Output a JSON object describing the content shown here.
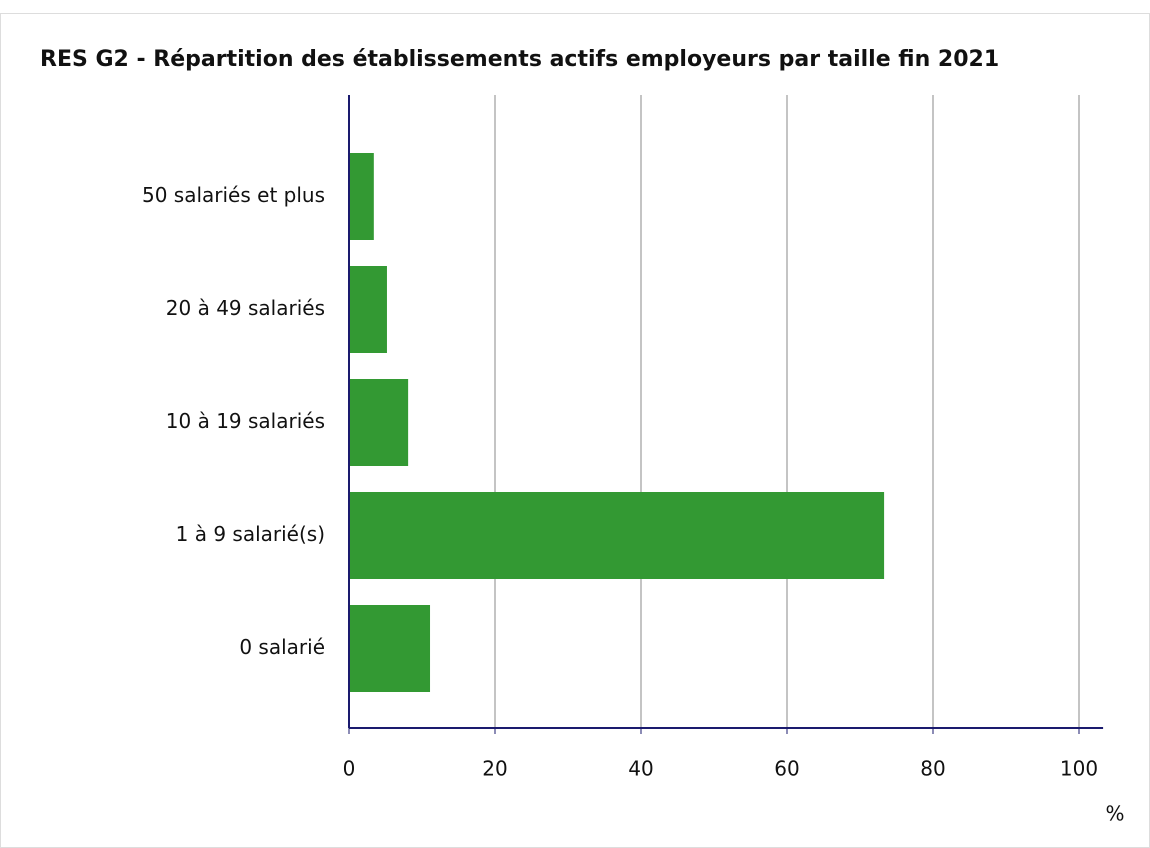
{
  "chart_data": {
    "type": "hbar",
    "title": "RES G2 - Répartition des établissements actifs employeurs par taille fin 2021",
    "categories": [
      "50 salariés et plus",
      "20 à 49 salariés",
      "10 à 19 salariés",
      "1 à 9 salarié(s)",
      "0 salarié"
    ],
    "values": [
      3.4,
      5.2,
      8.1,
      73.3,
      11.1
    ],
    "color": "#339933",
    "xlim": [
      0,
      103.3
    ],
    "xticks": [
      0,
      20,
      40,
      60,
      80,
      100
    ],
    "xlabel": "%",
    "grid": true
  }
}
